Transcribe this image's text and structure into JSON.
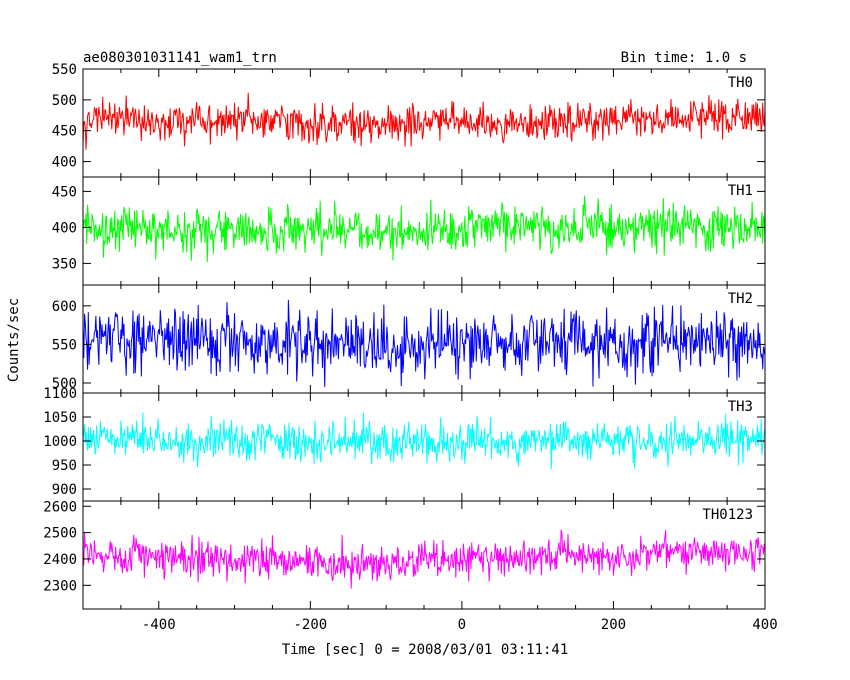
{
  "chart_data": {
    "type": "line",
    "title": "ae080301031141_wam1_trn",
    "subtitle": "Bin time: 1.0 s",
    "xlabel": "Time [sec] 0 = 2008/03/01 03:11:41",
    "ylabel": "Counts/sec",
    "xlim": [
      -500,
      400
    ],
    "x_ticks": [
      -400,
      -200,
      0,
      200,
      400
    ],
    "grid": false,
    "panels": [
      {
        "name": "TH0",
        "color": "#ff0000",
        "ylim": [
          375,
          550
        ],
        "y_ticks": [
          400,
          450,
          500,
          550
        ],
        "series": {
          "name": "TH0",
          "x_start": -500,
          "x_end": 400,
          "x_step": 1,
          "anchors": [
            [
              -500,
              470
            ],
            [
              -400,
              463
            ],
            [
              -300,
              466
            ],
            [
              -200,
              460
            ],
            [
              -100,
              462
            ],
            [
              0,
              466
            ],
            [
              100,
              462
            ],
            [
              200,
              468
            ],
            [
              300,
              472
            ],
            [
              400,
              470
            ]
          ],
          "spread": 28
        }
      },
      {
        "name": "TH1",
        "color": "#00ff00",
        "ylim": [
          320,
          470
        ],
        "y_ticks": [
          350,
          400,
          450
        ],
        "series": {
          "name": "TH1",
          "x_start": -500,
          "x_end": 400,
          "x_step": 1,
          "anchors": [
            [
              -500,
              400
            ],
            [
              -400,
              398
            ],
            [
              -300,
              396
            ],
            [
              -200,
              397
            ],
            [
              -100,
              395
            ],
            [
              0,
              398
            ],
            [
              100,
              400
            ],
            [
              200,
              401
            ],
            [
              300,
              402
            ],
            [
              400,
              400
            ]
          ],
          "spread": 28
        }
      },
      {
        "name": "TH2",
        "color": "#0000ff",
        "ylim": [
          487,
          627
        ],
        "y_ticks": [
          500,
          550,
          600
        ],
        "series": {
          "name": "TH2",
          "x_start": -500,
          "x_end": 400,
          "x_step": 1,
          "anchors": [
            [
              -500,
              555
            ],
            [
              -400,
              552
            ],
            [
              -300,
              556
            ],
            [
              -200,
              553
            ],
            [
              -100,
              551
            ],
            [
              0,
              552
            ],
            [
              100,
              552
            ],
            [
              200,
              553
            ],
            [
              300,
              554
            ],
            [
              400,
              555
            ]
          ],
          "spread": 38
        }
      },
      {
        "name": "TH3",
        "color": "#00ffff",
        "ylim": [
          875,
          1100
        ],
        "y_ticks": [
          900,
          950,
          1000,
          1050,
          1100
        ],
        "series": {
          "name": "TH3",
          "x_start": -500,
          "x_end": 400,
          "x_step": 1,
          "anchors": [
            [
              -500,
              1010
            ],
            [
              -400,
              1002
            ],
            [
              -300,
              998
            ],
            [
              -200,
              995
            ],
            [
              -100,
              996
            ],
            [
              0,
              998
            ],
            [
              100,
              1000
            ],
            [
              200,
              1002
            ],
            [
              300,
              1004
            ],
            [
              400,
              1005
            ]
          ],
          "spread": 38
        }
      },
      {
        "name": "TH0123",
        "color": "#ff00ff",
        "ylim": [
          2210,
          2620
        ],
        "y_ticks": [
          2300,
          2400,
          2500,
          2600
        ],
        "series": {
          "name": "TH0123",
          "x_start": -500,
          "x_end": 400,
          "x_step": 1,
          "anchors": [
            [
              -500,
              2430
            ],
            [
              -400,
              2405
            ],
            [
              -300,
              2395
            ],
            [
              -200,
              2385
            ],
            [
              -100,
              2385
            ],
            [
              0,
              2400
            ],
            [
              100,
              2410
            ],
            [
              200,
              2415
            ],
            [
              300,
              2425
            ],
            [
              400,
              2430
            ]
          ],
          "spread": 60
        }
      }
    ]
  }
}
